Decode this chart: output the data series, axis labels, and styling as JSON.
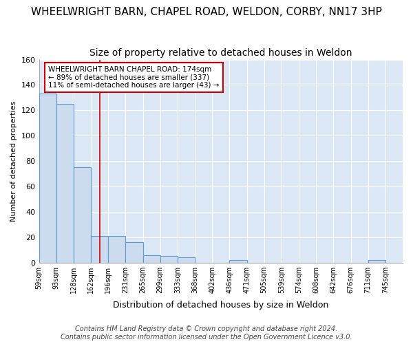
{
  "title": "WHEELWRIGHT BARN, CHAPEL ROAD, WELDON, CORBY, NN17 3HP",
  "subtitle": "Size of property relative to detached houses in Weldon",
  "xlabel": "Distribution of detached houses by size in Weldon",
  "ylabel": "Number of detached properties",
  "bar_labels": [
    "59sqm",
    "93sqm",
    "128sqm",
    "162sqm",
    "196sqm",
    "231sqm",
    "265sqm",
    "299sqm",
    "333sqm",
    "368sqm",
    "402sqm",
    "436sqm",
    "471sqm",
    "505sqm",
    "539sqm",
    "574sqm",
    "608sqm",
    "642sqm",
    "676sqm",
    "711sqm",
    "745sqm"
  ],
  "bar_values": [
    133,
    125,
    75,
    21,
    21,
    16,
    6,
    5,
    4,
    0,
    0,
    2,
    0,
    0,
    0,
    0,
    0,
    0,
    0,
    2,
    0
  ],
  "bar_color": "#ccdcee",
  "bar_edge_color": "#5b9bd5",
  "red_line_x": 3.5,
  "annotation_text": "WHEELWRIGHT BARN CHAPEL ROAD: 174sqm\n← 89% of detached houses are smaller (337)\n11% of semi-detached houses are larger (43) →",
  "annotation_box_color": "#ffffff",
  "annotation_box_edge": "#cc0000",
  "footer_text": "Contains HM Land Registry data © Crown copyright and database right 2024.\nContains public sector information licensed under the Open Government Licence v3.0.",
  "ylim": [
    0,
    160
  ],
  "yticks": [
    0,
    20,
    40,
    60,
    80,
    100,
    120,
    140,
    160
  ],
  "fig_background": "#ffffff",
  "plot_background": "#dce8f5",
  "grid_color": "#ffffff",
  "title_fontsize": 11,
  "subtitle_fontsize": 10,
  "footer_fontsize": 7
}
